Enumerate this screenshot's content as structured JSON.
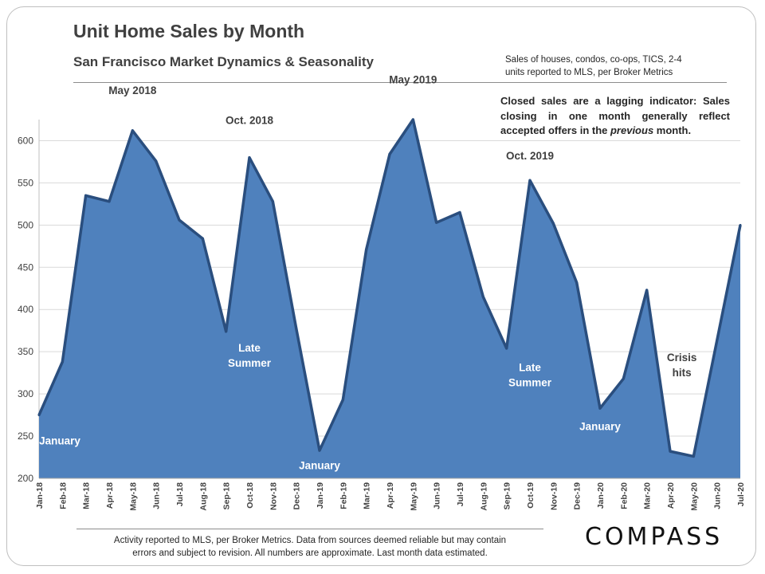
{
  "header": {
    "title": "Unit Home Sales by Month",
    "subtitle": "San Francisco Market Dynamics  &  Seasonality",
    "source_note_line1": "Sales of houses, condos, co-ops, TICS, 2-4",
    "source_note_line2": "units reported to MLS, per Broker Metrics"
  },
  "lag_note": {
    "before": "Closed sales are a lagging indicator: Sales closing in one month generally reflect accepted offers in the ",
    "emphasis": "previous",
    "after": " month."
  },
  "footer": {
    "line1": "Activity reported to MLS, per Broker Metrics. Data from sources deemed reliable but may contain",
    "line2": "errors and subject to revision. All numbers are approximate. Last month data estimated."
  },
  "brand": {
    "logo_text": "COMPASS"
  },
  "chart_data": {
    "type": "area",
    "categories": [
      "Jan-18",
      "Feb-18",
      "Mar-18",
      "Apr-18",
      "May-18",
      "Jun-18",
      "Jul-18",
      "Aug-18",
      "Sep-18",
      "Oct-18",
      "Nov-18",
      "Dec-18",
      "Jan-19",
      "Feb-19",
      "Mar-19",
      "Apr-19",
      "May-19",
      "Jun-19",
      "Jul-19",
      "Aug-19",
      "Sep-19",
      "Oct-19",
      "Nov-19",
      "Dec-19",
      "Jan-20",
      "Feb-20",
      "Mar-20",
      "Apr-20",
      "May-20",
      "Jun-20",
      "Jul-20"
    ],
    "values": [
      275,
      338,
      535,
      528,
      612,
      576,
      506,
      484,
      374,
      580,
      528,
      378,
      233,
      293,
      471,
      584,
      625,
      503,
      515,
      415,
      354,
      553,
      502,
      432,
      283,
      318,
      423,
      232,
      226,
      363,
      500
    ],
    "ylim": [
      200,
      625
    ],
    "yticks": [
      200,
      250,
      300,
      350,
      400,
      450,
      500,
      550,
      600
    ],
    "grid": true,
    "fill_color": "#4f81bd",
    "line_color": "#2a4e7e",
    "annotations": [
      {
        "text": "January",
        "index": 0,
        "value": 240,
        "style": "light"
      },
      {
        "text": "May 2018",
        "index": 4,
        "value": 655,
        "style": "dark"
      },
      {
        "text": "Oct. 2018",
        "index": 9,
        "value": 620,
        "style": "dark"
      },
      {
        "text": "Late",
        "index": 9,
        "value": 350,
        "style": "light"
      },
      {
        "text": "Summer",
        "index": 9,
        "value": 332,
        "style": "light"
      },
      {
        "text": "January",
        "index": 12,
        "value": 211,
        "style": "light"
      },
      {
        "text": "May 2019",
        "index": 16,
        "value": 668,
        "style": "dark"
      },
      {
        "text": "Oct. 2019",
        "index": 21,
        "value": 578,
        "style": "dark"
      },
      {
        "text": "Late",
        "index": 21,
        "value": 327,
        "style": "light"
      },
      {
        "text": "Summer",
        "index": 21,
        "value": 309,
        "style": "light"
      },
      {
        "text": "January",
        "index": 24,
        "value": 257,
        "style": "light"
      },
      {
        "text": "Crisis",
        "index": 27.5,
        "value": 339,
        "style": "dark"
      },
      {
        "text": "hits",
        "index": 27.5,
        "value": 321,
        "style": "dark"
      }
    ]
  }
}
